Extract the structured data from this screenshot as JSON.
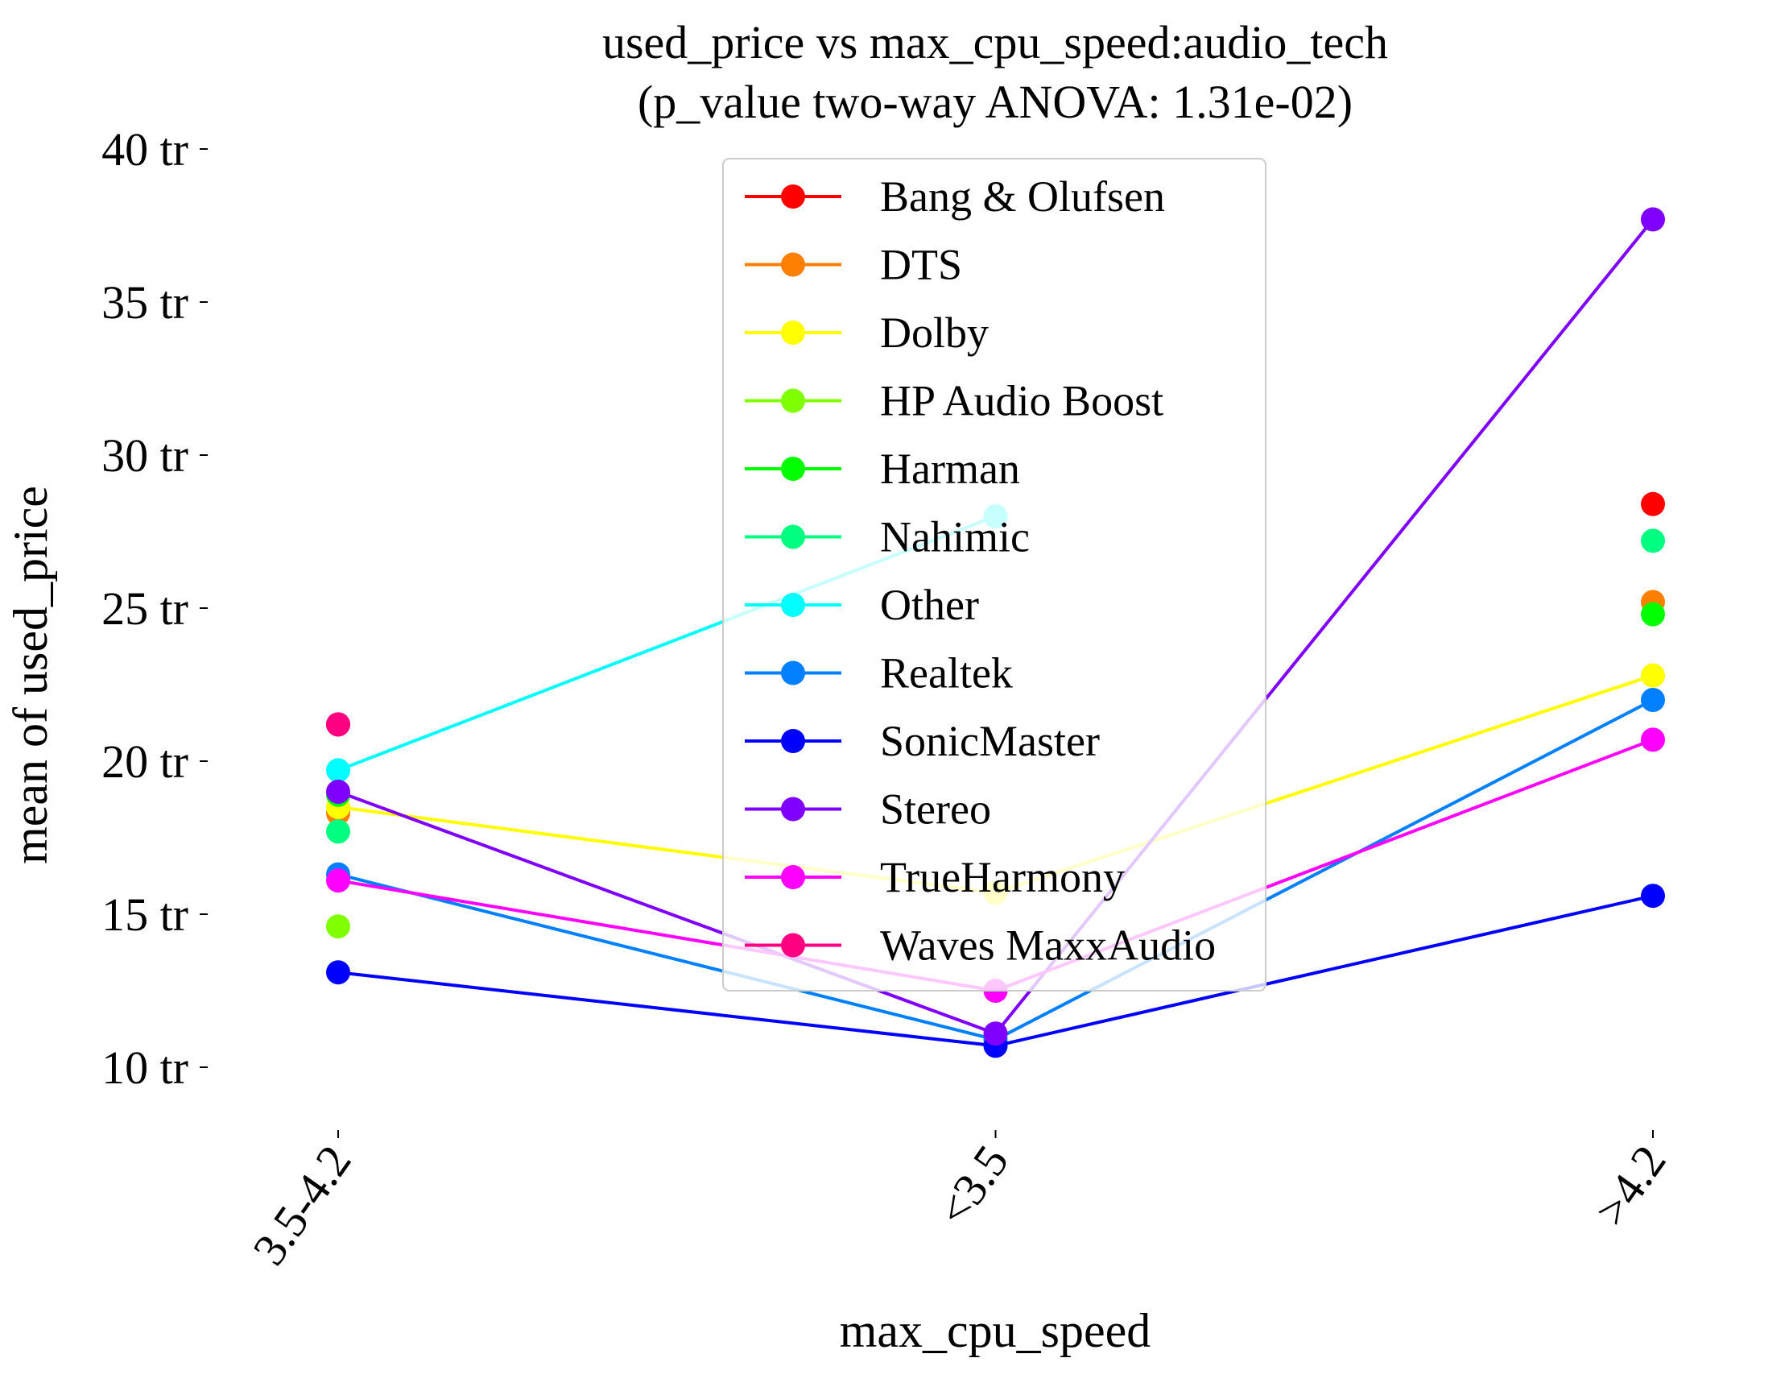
{
  "chart_data": {
    "type": "line",
    "title": "used_price vs max_cpu_speed:audio_tech",
    "subtitle": "(p_value two-way ANOVA: 1.31e-02)",
    "xlabel": "max_cpu_speed",
    "ylabel": "mean of used_price",
    "categories": [
      "3.5-4.2",
      "<3.5",
      ">4.2"
    ],
    "y_ticks": [
      {
        "value": 10,
        "label": "10 tr"
      },
      {
        "value": 15,
        "label": "15 tr"
      },
      {
        "value": 20,
        "label": "20 tr"
      },
      {
        "value": 25,
        "label": "25 tr"
      },
      {
        "value": 30,
        "label": "30 tr"
      },
      {
        "value": 35,
        "label": "35 tr"
      },
      {
        "value": 40,
        "label": "40 tr"
      }
    ],
    "ylim": [
      8,
      40
    ],
    "grid": false,
    "legend_position": "top-center",
    "series": [
      {
        "name": "Bang & Olufsen",
        "color": "#ff0000",
        "values": [
          21.2,
          null,
          28.4
        ]
      },
      {
        "name": "DTS",
        "color": "#ff8000",
        "values": [
          18.3,
          null,
          25.2
        ]
      },
      {
        "name": "Dolby",
        "color": "#ffff00",
        "values": [
          18.5,
          15.7,
          22.8
        ]
      },
      {
        "name": "HP Audio Boost",
        "color": "#80ff00",
        "values": [
          14.6,
          null,
          null
        ]
      },
      {
        "name": "Harman",
        "color": "#00ff00",
        "values": [
          18.9,
          null,
          24.8
        ]
      },
      {
        "name": "Nahimic",
        "color": "#00ff80",
        "values": [
          17.7,
          null,
          27.2
        ]
      },
      {
        "name": "Other",
        "color": "#00ffff",
        "values": [
          19.7,
          28.0,
          null
        ]
      },
      {
        "name": "Realtek",
        "color": "#0080ff",
        "values": [
          16.3,
          10.9,
          22.0
        ]
      },
      {
        "name": "SonicMaster",
        "color": "#0000ff",
        "values": [
          13.1,
          10.7,
          15.6
        ]
      },
      {
        "name": "Stereo",
        "color": "#8000ff",
        "values": [
          19.0,
          11.1,
          37.7
        ]
      },
      {
        "name": "TrueHarmony",
        "color": "#ff00ff",
        "values": [
          16.1,
          12.5,
          20.7
        ]
      },
      {
        "name": "Waves MaxxAudio",
        "color": "#ff0080",
        "values": [
          21.2,
          null,
          null
        ]
      }
    ]
  }
}
